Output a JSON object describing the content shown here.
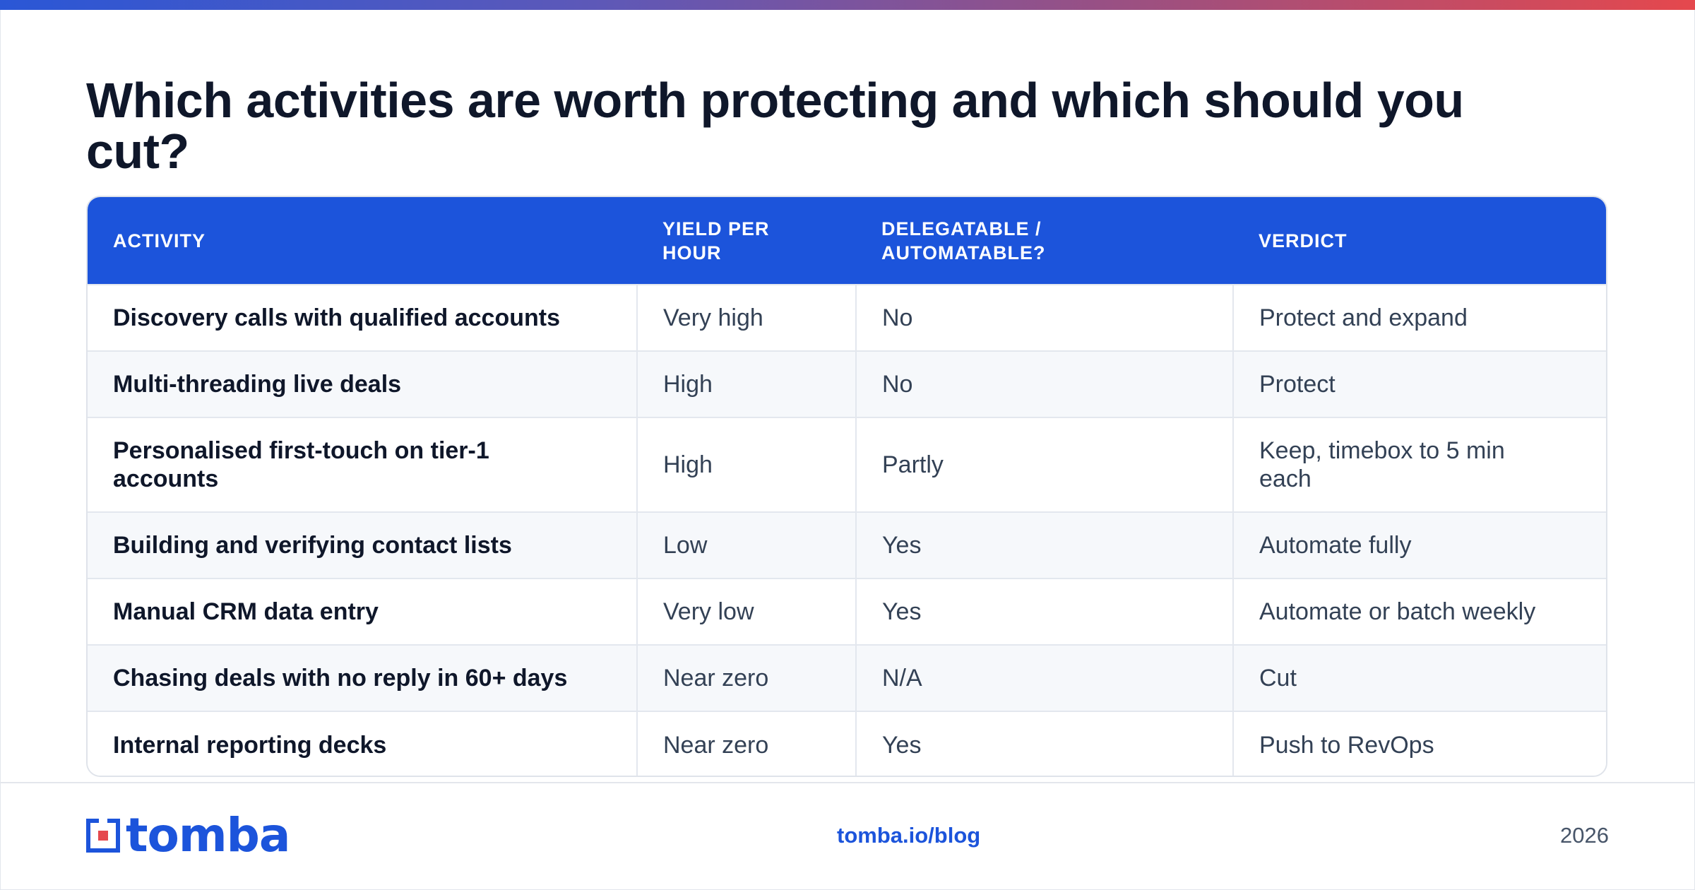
{
  "title": "Which activities are worth protecting and which should you cut?",
  "colors": {
    "accent": "#1c54db",
    "gradient_start": "#2a57d6",
    "gradient_end": "#e5484d",
    "header_text": "#ffffff"
  },
  "table": {
    "headers": [
      "ACTIVITY",
      "YIELD PER HOUR",
      "DELEGATABLE / AUTOMATABLE?",
      "VERDICT"
    ],
    "rows": [
      [
        "Discovery calls with qualified accounts",
        "Very high",
        "No",
        "Protect and expand"
      ],
      [
        "Multi-threading live deals",
        "High",
        "No",
        "Protect"
      ],
      [
        "Personalised first-touch on tier-1 accounts",
        "High",
        "Partly",
        "Keep, timebox to 5 min each"
      ],
      [
        "Building and verifying contact lists",
        "Low",
        "Yes",
        "Automate fully"
      ],
      [
        "Manual CRM data entry",
        "Very low",
        "Yes",
        "Automate or batch weekly"
      ],
      [
        "Chasing deals with no reply in 60+ days",
        "Near zero",
        "N/A",
        "Cut"
      ],
      [
        "Internal reporting decks",
        "Near zero",
        "Yes",
        "Push to RevOps"
      ]
    ]
  },
  "footer": {
    "logo_text": "tomba",
    "logo_icon": "tomba-logo-icon",
    "link": "tomba.io/blog",
    "year": "2026"
  }
}
